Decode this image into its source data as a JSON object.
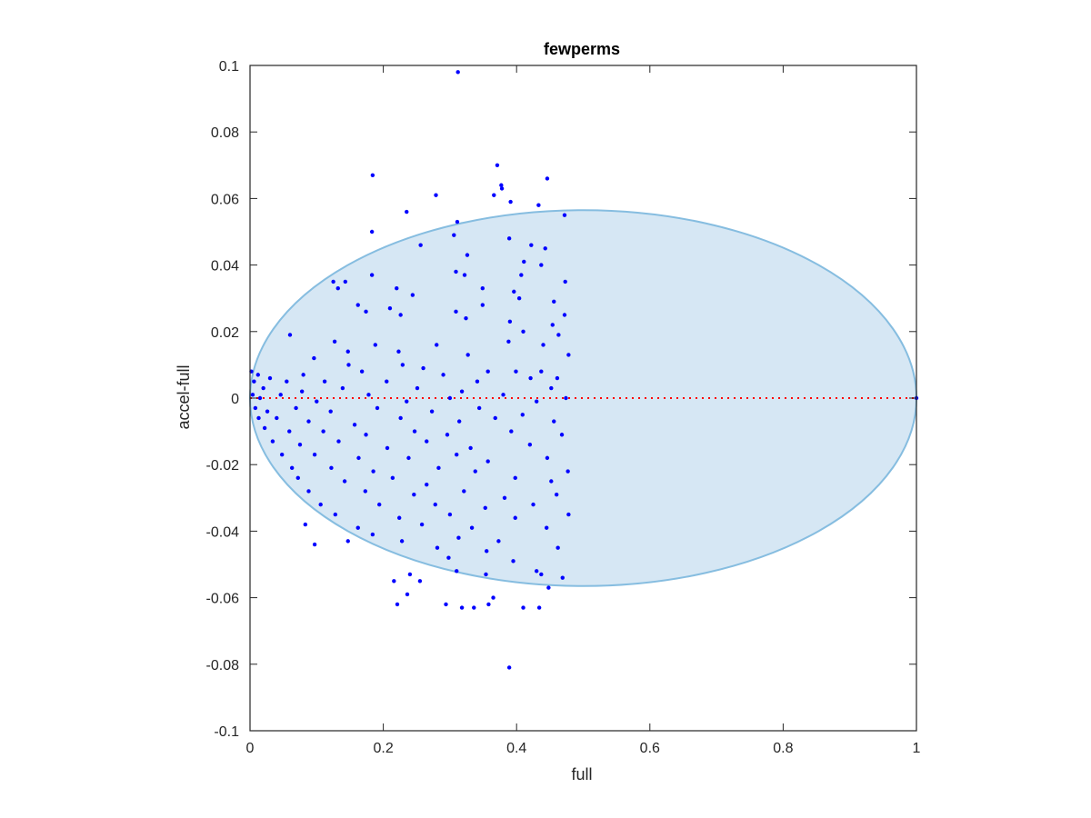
{
  "chart_data": {
    "type": "scatter",
    "title": "fewperms",
    "xlabel": "full",
    "ylabel": "accel-full",
    "xlim": [
      0,
      1
    ],
    "ylim": [
      -0.1,
      0.1
    ],
    "xticks": [
      "0",
      "0.2",
      "0.4",
      "0.6",
      "0.8",
      "1"
    ],
    "yticks": [
      "-0.1",
      "-0.08",
      "-0.06",
      "-0.04",
      "-0.02",
      "0",
      "0.02",
      "0.04",
      "0.06",
      "0.08",
      "0.1"
    ],
    "grid": false,
    "reference_line": {
      "y": 0,
      "style": "dotted",
      "color": "#ff0000"
    },
    "region": {
      "shape": "ellipse",
      "center": [
        0.5,
        0.0
      ],
      "semi_axes": [
        0.5,
        0.0565
      ],
      "fill": "#d6e7f4",
      "stroke": "#86bde0"
    },
    "series": [
      {
        "marker_color": "#0000ff",
        "points": [
          [
            0.312,
            0.098
          ],
          [
            0.371,
            0.07
          ],
          [
            0.184,
            0.067
          ],
          [
            0.446,
            0.066
          ],
          [
            0.377,
            0.064
          ],
          [
            0.378,
            0.063
          ],
          [
            0.279,
            0.061
          ],
          [
            0.366,
            0.061
          ],
          [
            0.391,
            0.059
          ],
          [
            0.433,
            0.058
          ],
          [
            0.235,
            0.056
          ],
          [
            0.472,
            0.055
          ],
          [
            0.311,
            0.053
          ],
          [
            0.183,
            0.05
          ],
          [
            0.389,
            0.048
          ],
          [
            0.306,
            0.049
          ],
          [
            0.256,
            0.046
          ],
          [
            0.422,
            0.046
          ],
          [
            0.443,
            0.045
          ],
          [
            0.326,
            0.043
          ],
          [
            0.411,
            0.041
          ],
          [
            0.437,
            0.04
          ],
          [
            0.309,
            0.038
          ],
          [
            0.322,
            0.037
          ],
          [
            0.183,
            0.037
          ],
          [
            0.407,
            0.037
          ],
          [
            0.125,
            0.035
          ],
          [
            0.143,
            0.035
          ],
          [
            0.473,
            0.035
          ],
          [
            0.132,
            0.033
          ],
          [
            0.22,
            0.033
          ],
          [
            0.349,
            0.033
          ],
          [
            0.396,
            0.032
          ],
          [
            0.244,
            0.031
          ],
          [
            0.404,
            0.03
          ],
          [
            0.456,
            0.029
          ],
          [
            0.162,
            0.028
          ],
          [
            0.349,
            0.028
          ],
          [
            0.21,
            0.027
          ],
          [
            0.309,
            0.026
          ],
          [
            0.174,
            0.026
          ],
          [
            0.226,
            0.025
          ],
          [
            0.472,
            0.025
          ],
          [
            0.324,
            0.024
          ],
          [
            0.39,
            0.023
          ],
          [
            0.454,
            0.022
          ],
          [
            0.06,
            0.019
          ],
          [
            0.41,
            0.02
          ],
          [
            0.463,
            0.019
          ],
          [
            0.127,
            0.017
          ],
          [
            0.188,
            0.016
          ],
          [
            0.44,
            0.016
          ],
          [
            0.28,
            0.016
          ],
          [
            0.388,
            0.017
          ],
          [
            0.147,
            0.014
          ],
          [
            0.223,
            0.014
          ],
          [
            0.327,
            0.013
          ],
          [
            0.478,
            0.013
          ],
          [
            0.096,
            0.012
          ],
          [
            0.148,
            0.01
          ],
          [
            0.229,
            0.01
          ],
          [
            0.26,
            0.009
          ],
          [
            0.357,
            0.008
          ],
          [
            0.437,
            0.008
          ],
          [
            0.002,
            0.008
          ],
          [
            0.012,
            0.007
          ],
          [
            0.08,
            0.007
          ],
          [
            0.168,
            0.008
          ],
          [
            0.29,
            0.007
          ],
          [
            0.399,
            0.008
          ],
          [
            0.461,
            0.006
          ],
          [
            0.006,
            0.005
          ],
          [
            0.03,
            0.006
          ],
          [
            0.055,
            0.005
          ],
          [
            0.112,
            0.005
          ],
          [
            0.205,
            0.005
          ],
          [
            0.341,
            0.005
          ],
          [
            0.421,
            0.006
          ],
          [
            0.02,
            0.003
          ],
          [
            0.078,
            0.002
          ],
          [
            0.139,
            0.003
          ],
          [
            0.251,
            0.003
          ],
          [
            0.318,
            0.002
          ],
          [
            0.452,
            0.003
          ],
          [
            0.004,
            0.001
          ],
          [
            0.015,
            0.0
          ],
          [
            0.046,
            0.001
          ],
          [
            0.1,
            -0.001
          ],
          [
            0.178,
            0.001
          ],
          [
            0.235,
            -0.001
          ],
          [
            0.3,
            0.0
          ],
          [
            0.38,
            0.001
          ],
          [
            0.43,
            -0.001
          ],
          [
            0.474,
            0.0
          ],
          [
            0.008,
            -0.003
          ],
          [
            0.026,
            -0.004
          ],
          [
            0.069,
            -0.003
          ],
          [
            0.121,
            -0.004
          ],
          [
            0.191,
            -0.003
          ],
          [
            0.273,
            -0.004
          ],
          [
            0.344,
            -0.003
          ],
          [
            0.409,
            -0.005
          ],
          [
            0.013,
            -0.006
          ],
          [
            0.04,
            -0.006
          ],
          [
            0.088,
            -0.007
          ],
          [
            0.157,
            -0.008
          ],
          [
            0.226,
            -0.006
          ],
          [
            0.314,
            -0.007
          ],
          [
            0.368,
            -0.006
          ],
          [
            0.456,
            -0.007
          ],
          [
            0.022,
            -0.009
          ],
          [
            0.059,
            -0.01
          ],
          [
            0.11,
            -0.01
          ],
          [
            0.174,
            -0.011
          ],
          [
            0.247,
            -0.01
          ],
          [
            0.296,
            -0.011
          ],
          [
            0.392,
            -0.01
          ],
          [
            0.468,
            -0.011
          ],
          [
            0.034,
            -0.013
          ],
          [
            0.075,
            -0.014
          ],
          [
            0.133,
            -0.013
          ],
          [
            0.206,
            -0.015
          ],
          [
            0.265,
            -0.013
          ],
          [
            0.331,
            -0.015
          ],
          [
            0.42,
            -0.014
          ],
          [
            0.048,
            -0.017
          ],
          [
            0.097,
            -0.017
          ],
          [
            0.163,
            -0.018
          ],
          [
            0.238,
            -0.018
          ],
          [
            0.31,
            -0.017
          ],
          [
            0.357,
            -0.019
          ],
          [
            0.446,
            -0.018
          ],
          [
            0.063,
            -0.021
          ],
          [
            0.122,
            -0.021
          ],
          [
            0.185,
            -0.022
          ],
          [
            0.283,
            -0.021
          ],
          [
            0.338,
            -0.022
          ],
          [
            0.477,
            -0.022
          ],
          [
            0.072,
            -0.024
          ],
          [
            0.142,
            -0.025
          ],
          [
            0.214,
            -0.024
          ],
          [
            0.265,
            -0.026
          ],
          [
            0.398,
            -0.024
          ],
          [
            0.452,
            -0.025
          ],
          [
            0.088,
            -0.028
          ],
          [
            0.173,
            -0.028
          ],
          [
            0.246,
            -0.029
          ],
          [
            0.321,
            -0.028
          ],
          [
            0.382,
            -0.03
          ],
          [
            0.46,
            -0.029
          ],
          [
            0.106,
            -0.032
          ],
          [
            0.194,
            -0.032
          ],
          [
            0.278,
            -0.032
          ],
          [
            0.353,
            -0.033
          ],
          [
            0.425,
            -0.032
          ],
          [
            0.128,
            -0.035
          ],
          [
            0.224,
            -0.036
          ],
          [
            0.3,
            -0.035
          ],
          [
            0.398,
            -0.036
          ],
          [
            0.478,
            -0.035
          ],
          [
            0.083,
            -0.038
          ],
          [
            0.162,
            -0.039
          ],
          [
            0.258,
            -0.038
          ],
          [
            0.333,
            -0.039
          ],
          [
            0.445,
            -0.039
          ],
          [
            0.184,
            -0.041
          ],
          [
            0.228,
            -0.043
          ],
          [
            0.313,
            -0.042
          ],
          [
            0.373,
            -0.043
          ],
          [
            0.097,
            -0.044
          ],
          [
            0.147,
            -0.043
          ],
          [
            0.281,
            -0.045
          ],
          [
            0.355,
            -0.046
          ],
          [
            0.462,
            -0.045
          ],
          [
            0.298,
            -0.048
          ],
          [
            0.395,
            -0.049
          ],
          [
            0.43,
            -0.052
          ],
          [
            0.31,
            -0.052
          ],
          [
            0.24,
            -0.053
          ],
          [
            0.354,
            -0.053
          ],
          [
            0.437,
            -0.053
          ],
          [
            0.216,
            -0.055
          ],
          [
            0.255,
            -0.055
          ],
          [
            0.469,
            -0.054
          ],
          [
            0.448,
            -0.057
          ],
          [
            0.236,
            -0.059
          ],
          [
            0.365,
            -0.06
          ],
          [
            0.221,
            -0.062
          ],
          [
            0.294,
            -0.062
          ],
          [
            0.318,
            -0.063
          ],
          [
            0.336,
            -0.063
          ],
          [
            0.358,
            -0.062
          ],
          [
            0.41,
            -0.063
          ],
          [
            0.434,
            -0.063
          ],
          [
            0.389,
            -0.081
          ],
          [
            1.0,
            0.0
          ]
        ]
      }
    ]
  }
}
